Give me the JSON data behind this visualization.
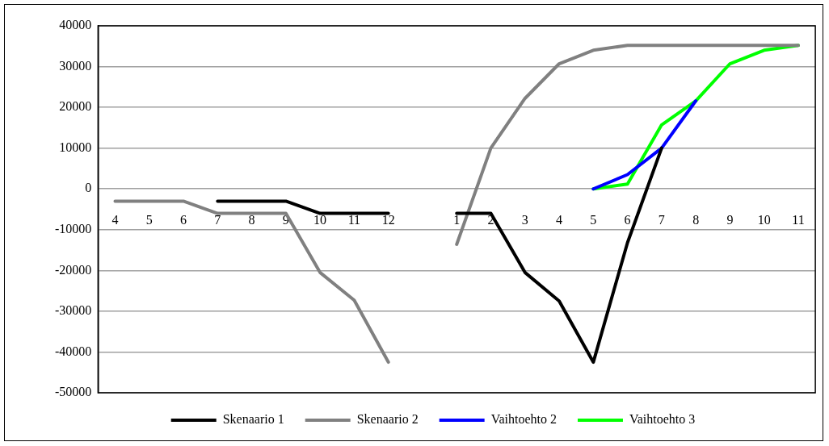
{
  "chart_data": {
    "type": "line",
    "categories": [
      "4",
      "5",
      "6",
      "7",
      "8",
      "9",
      "10",
      "11",
      "12",
      null,
      "1",
      "2",
      "3",
      "4",
      "5",
      "6",
      "7",
      "8",
      "9",
      "10",
      "11"
    ],
    "series": [
      {
        "name": "Skenaario 1",
        "color": "#000000",
        "values": [
          null,
          null,
          null,
          -3000,
          -3000,
          -3000,
          -6000,
          -6000,
          -6000,
          null,
          -6000,
          -6000,
          -20500,
          -27500,
          -42500,
          -13200,
          10000,
          null,
          null,
          null,
          null
        ]
      },
      {
        "name": "Skenaario 2",
        "color": "#808080",
        "values": [
          -3000,
          -3000,
          -3000,
          -6000,
          -6000,
          -6000,
          -20500,
          -27300,
          -42500,
          null,
          -13600,
          10000,
          22200,
          30700,
          34000,
          35200,
          35200,
          35200,
          35200,
          35200,
          35200
        ]
      },
      {
        "name": "Vaihtoehto 2",
        "color": "#0000ff",
        "values": [
          null,
          null,
          null,
          null,
          null,
          null,
          null,
          null,
          null,
          null,
          null,
          null,
          null,
          null,
          0,
          3500,
          10000,
          21600,
          null,
          null,
          null
        ]
      },
      {
        "name": "Vaihtoehto 3",
        "color": "#00ff00",
        "values": [
          null,
          null,
          null,
          null,
          null,
          null,
          null,
          null,
          null,
          null,
          null,
          null,
          null,
          null,
          0,
          1200,
          15700,
          21600,
          30700,
          34000,
          35200
        ]
      }
    ],
    "ylim": [
      -50000,
      40000
    ],
    "yticks": [
      -50000,
      -40000,
      -30000,
      -20000,
      -10000,
      0,
      10000,
      20000,
      30000,
      40000
    ],
    "grid": "y",
    "legend": "bottom",
    "marker": "none",
    "line_style": "solid"
  }
}
